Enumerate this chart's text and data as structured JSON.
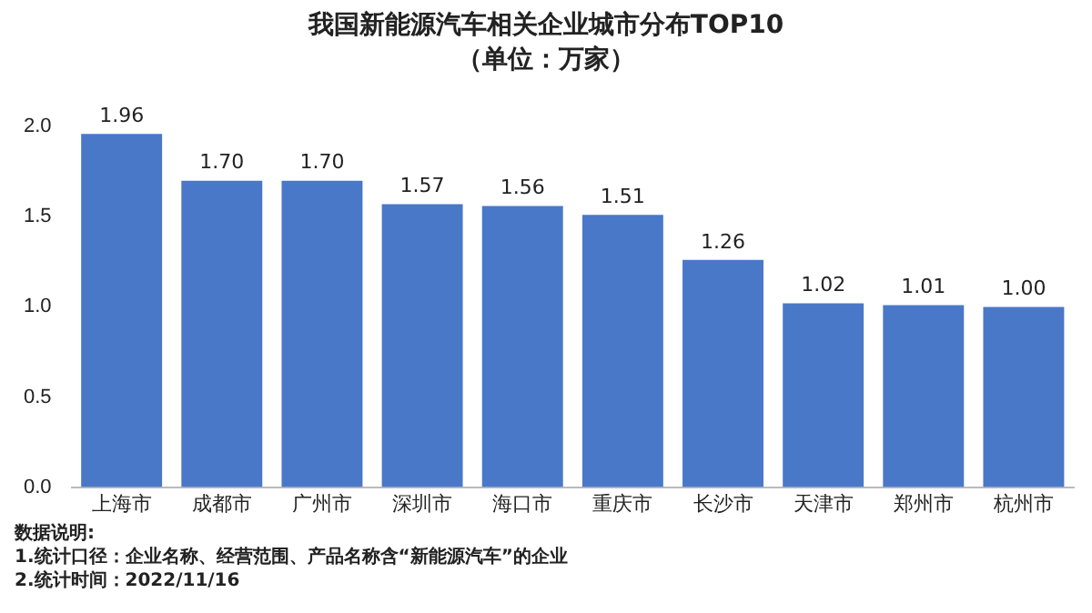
{
  "chart_data": {
    "type": "bar",
    "title": "我国新能源汽车相关企业城市分布TOP10",
    "subtitle": "（单位：万家）",
    "categories": [
      "上海市",
      "成都市",
      "广州市",
      "深圳市",
      "海口市",
      "重庆市",
      "长沙市",
      "天津市",
      "郑州市",
      "杭州市"
    ],
    "values": [
      1.96,
      1.7,
      1.7,
      1.57,
      1.56,
      1.51,
      1.26,
      1.02,
      1.01,
      1.0
    ],
    "value_labels": [
      "1.96",
      "1.70",
      "1.70",
      "1.57",
      "1.56",
      "1.51",
      "1.26",
      "1.02",
      "1.01",
      "1.00"
    ],
    "color": "#4a78c8",
    "ylim": [
      0,
      2
    ],
    "yticks": [
      {
        "value": 0,
        "label": "0.0"
      },
      {
        "value": 0.5,
        "label": "0.5"
      },
      {
        "value": 1,
        "label": "1.0"
      },
      {
        "value": 1.5,
        "label": "1.5"
      },
      {
        "value": 2,
        "label": "2.0"
      }
    ],
    "grid": false,
    "legend": false,
    "annotations": [
      "数据说明:",
      "1.统计口径：企业名称、经营范围、产品名称含“新能源汽车”的企业",
      "2.统计时间：2022/11/16"
    ]
  }
}
